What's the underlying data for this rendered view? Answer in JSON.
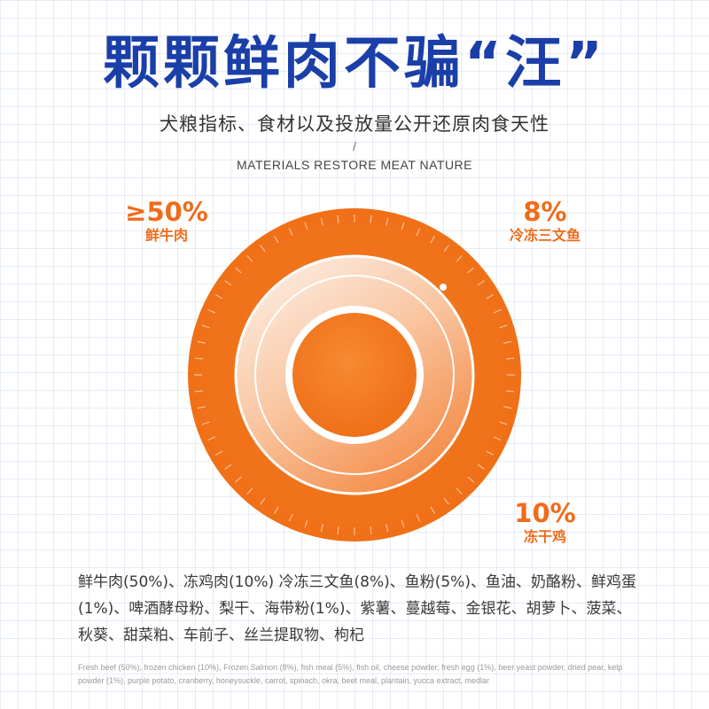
{
  "header": {
    "title": "颗颗鲜肉不骗“汪”",
    "subtitle": "犬粮指标、食材以及投放量公开还原肉食天性",
    "divider": "/",
    "english_subtitle": "MATERIALS RESTORE MEAT NATURE"
  },
  "callouts": {
    "beef": {
      "percent": "≥50%",
      "name": "鲜牛肉"
    },
    "salmon": {
      "percent": "8%",
      "name": "冷冻三文鱼"
    },
    "chicken": {
      "percent": "10%",
      "name": "冻干鸡"
    }
  },
  "ingredients": {
    "chinese": "鲜牛肉(50%)、冻鸡肉(10%) 冷冻三文鱼(8%)、鱼粉(5%)、鱼油、奶酪粉、鲜鸡蛋(1%)、啤酒酵母粉、梨干、海带粉(1%)、紫薯、蔓越莓、金银花、胡萝卜、菠菜、秋葵、甜菜粕、车前子、丝兰提取物、枸杞",
    "english": "Fresh beef (50%), frozen chicken (10%), Frozen Salmon (8%), fish meal (5%), fish oil, cheese powder, fresh egg (1%), beer yeast powder, dried pear, kelp powder (1%), purple potato, cranberry, honeysuckle, carrot, spinach, okra, beet meal, plantain, yucca extract, medlar"
  },
  "colors": {
    "title_blue": "#1b3fa8",
    "accent_orange": "#f06b1a",
    "ring_orange": "#f47a20"
  }
}
